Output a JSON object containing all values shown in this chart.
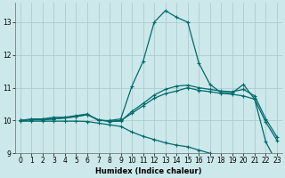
{
  "xlabel": "Humidex (Indice chaleur)",
  "background_color": "#cce8ea",
  "grid_color": "#aacdd0",
  "line_color": "#006b6b",
  "xlim": [
    -0.5,
    23.5
  ],
  "ylim": [
    9.0,
    13.6
  ],
  "yticks": [
    9,
    10,
    11,
    12,
    13
  ],
  "xticks": [
    0,
    1,
    2,
    3,
    4,
    5,
    6,
    7,
    8,
    9,
    10,
    11,
    12,
    13,
    14,
    15,
    16,
    17,
    18,
    19,
    20,
    21,
    22,
    23
  ],
  "lines": [
    {
      "x": [
        0,
        1,
        2,
        3,
        4,
        5,
        6,
        7,
        8,
        9,
        10,
        11,
        12,
        13,
        14,
        15,
        16,
        17,
        18,
        19,
        20,
        21,
        22,
        23
      ],
      "y": [
        10.0,
        10.05,
        10.05,
        10.1,
        10.1,
        10.15,
        10.2,
        10.0,
        10.0,
        10.05,
        11.05,
        11.8,
        13.0,
        13.35,
        13.15,
        13.0,
        11.75,
        11.1,
        10.85,
        10.85,
        11.1,
        10.65,
        9.35,
        8.7
      ]
    },
    {
      "x": [
        0,
        1,
        2,
        3,
        4,
        5,
        6,
        7,
        8,
        9,
        10,
        11,
        12,
        13,
        14,
        15,
        16,
        17,
        18,
        19,
        20,
        21,
        22,
        23
      ],
      "y": [
        10.0,
        10.03,
        10.03,
        10.05,
        10.08,
        10.12,
        10.18,
        10.02,
        9.98,
        10.0,
        10.22,
        10.45,
        10.68,
        10.82,
        10.9,
        11.0,
        10.92,
        10.88,
        10.83,
        10.8,
        10.75,
        10.65,
        9.95,
        9.4
      ]
    },
    {
      "x": [
        0,
        1,
        2,
        3,
        4,
        5,
        6,
        7,
        8,
        9,
        10,
        11,
        12,
        13,
        14,
        15,
        16,
        17,
        18,
        19,
        20,
        21,
        22,
        23
      ],
      "y": [
        10.0,
        10.02,
        10.02,
        10.05,
        10.08,
        10.12,
        10.18,
        10.02,
        9.97,
        9.98,
        10.28,
        10.52,
        10.78,
        10.95,
        11.05,
        11.08,
        11.0,
        10.95,
        10.9,
        10.88,
        10.95,
        10.75,
        10.05,
        9.5
      ]
    },
    {
      "x": [
        0,
        1,
        2,
        3,
        4,
        5,
        6,
        7,
        8,
        9,
        10,
        11,
        12,
        13,
        14,
        15,
        16,
        17,
        18,
        19,
        20,
        21,
        22,
        23
      ],
      "y": [
        9.98,
        9.98,
        9.98,
        9.98,
        9.98,
        9.98,
        9.97,
        9.92,
        9.87,
        9.82,
        9.65,
        9.52,
        9.42,
        9.32,
        9.25,
        9.2,
        9.1,
        9.0,
        8.92,
        8.87,
        8.82,
        8.78,
        8.73,
        8.6
      ]
    }
  ]
}
